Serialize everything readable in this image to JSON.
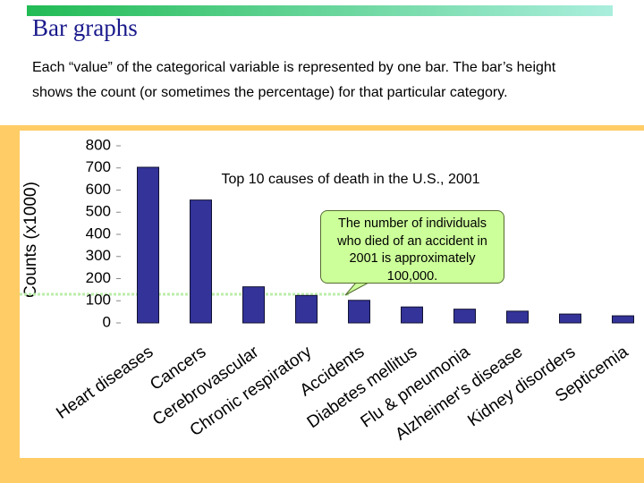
{
  "header": {
    "title": "Bar graphs"
  },
  "body": {
    "text": "Each “value” of the categorical variable is represented by one bar. The bar’s height shows the count (or sometimes the percentage) for that particular category."
  },
  "chart_data": {
    "type": "bar",
    "title": "Top 10 causes of death in the U.S., 2001",
    "y_label": "Counts (x1000)",
    "categories": [
      "Heart diseases",
      "Cancers",
      "Cerebrovascular",
      "Chronic respiratory",
      "Accidents",
      "Diabetes mellitus",
      "Flu & pneumonia",
      "Alzheimer's disease",
      "Kidney disorders",
      "Septicemia"
    ],
    "values": [
      703,
      555,
      163,
      124,
      102,
      72,
      62,
      53,
      40,
      32
    ],
    "color": "#333399",
    "ylim": [
      0,
      800
    ],
    "yticks": [
      0,
      100,
      200,
      300,
      400,
      500,
      600,
      700,
      800
    ],
    "grid": false,
    "annotation": "The number of individuals who died of an accident in 2001 is approximately 100,000."
  }
}
